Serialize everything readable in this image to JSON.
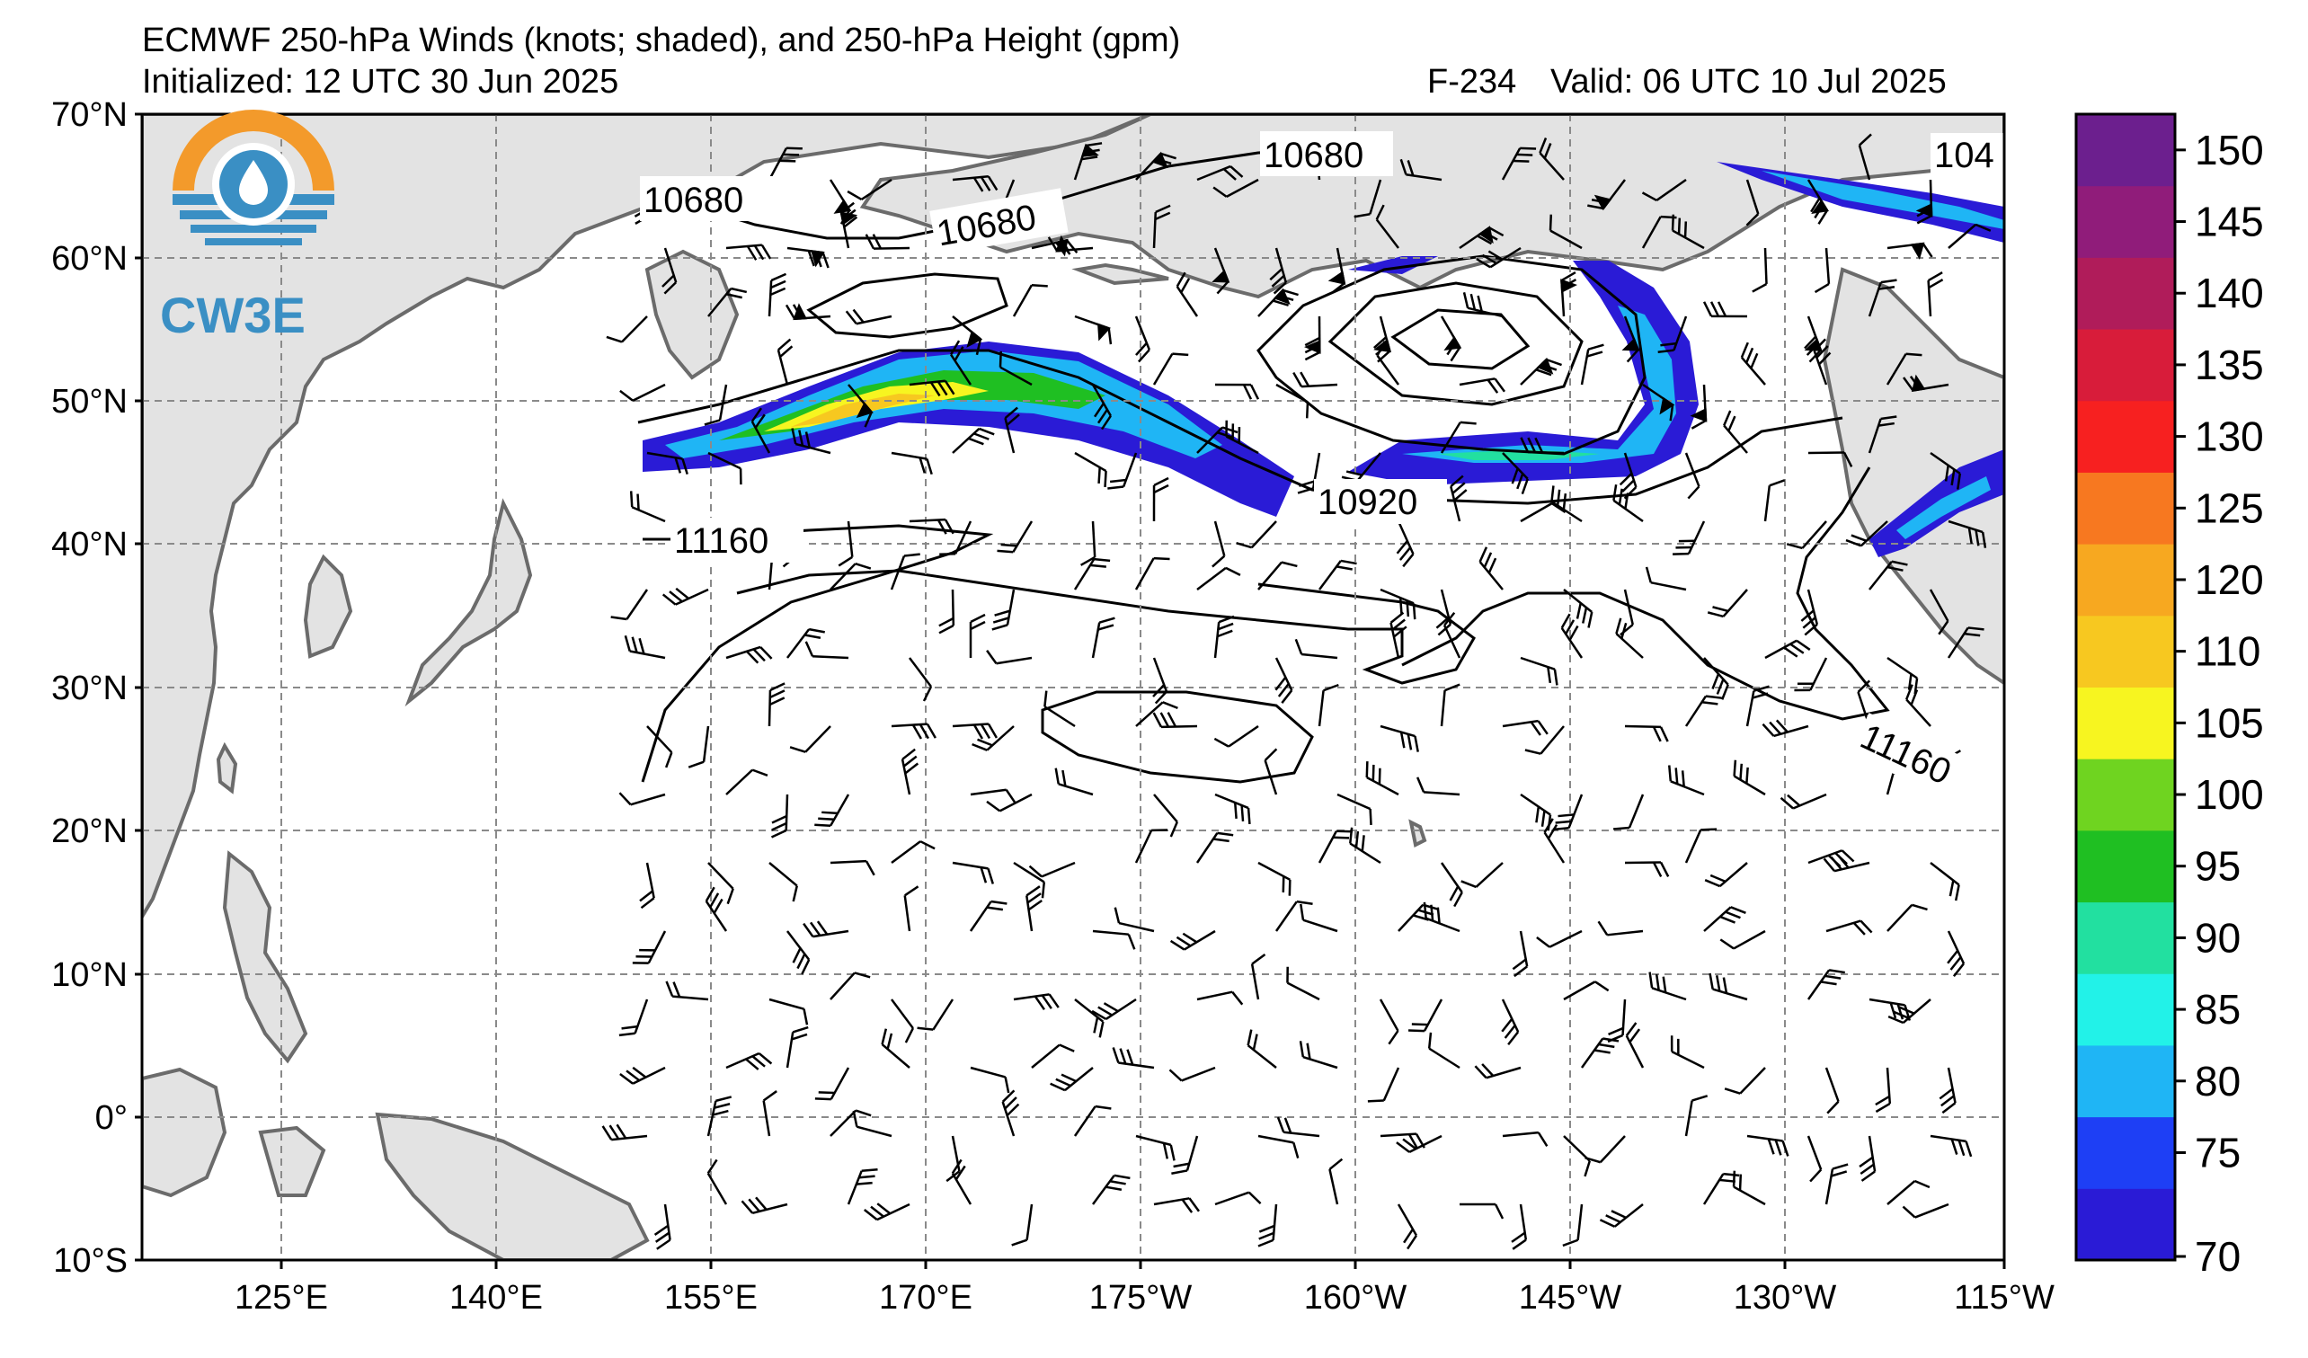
{
  "header": {
    "title": "ECMWF 250-hPa Winds (knots; shaded), and 250-hPa Height (gpm)",
    "initialized": "Initialized: 12 UTC 30 Jun 2025",
    "forecast_hour": "F-234",
    "valid": "Valid: 06 UTC 10 Jul 2025"
  },
  "logo": {
    "text": "CW3E",
    "icon": "water-drop-logo-icon",
    "orange": "#f39a2b",
    "blue": "#3a8fc4"
  },
  "map": {
    "lat_labels": [
      "70°N",
      "60°N",
      "50°N",
      "40°N",
      "30°N",
      "20°N",
      "10°N",
      "0°",
      "10°S"
    ],
    "lon_labels": [
      "125°E",
      "140°E",
      "155°E",
      "170°E",
      "175°W",
      "160°W",
      "145°W",
      "130°W",
      "115°W"
    ],
    "land_color": "#e3e3e3",
    "coast_color": "#6b6b6b",
    "grid_color": "#8a8a8a",
    "contour_labels": [
      "10680",
      "10680",
      "10680",
      "10920",
      "11160",
      "11160",
      "104"
    ]
  },
  "colorbar": {
    "labels": [
      "150",
      "145",
      "140",
      "135",
      "130",
      "125",
      "120",
      "110",
      "105",
      "100",
      "95",
      "90",
      "85",
      "80",
      "75",
      "70"
    ],
    "colors": [
      "#2a1bd6",
      "#1e3ff5",
      "#1fb5f5",
      "#22f2e8",
      "#22e0a0",
      "#1fbf22",
      "#6fd420",
      "#f7f520",
      "#f7c820",
      "#f7a820",
      "#f77820",
      "#f72020",
      "#d81c3a",
      "#b01c5a",
      "#901c7a",
      "#6c1f8e"
    ]
  }
}
